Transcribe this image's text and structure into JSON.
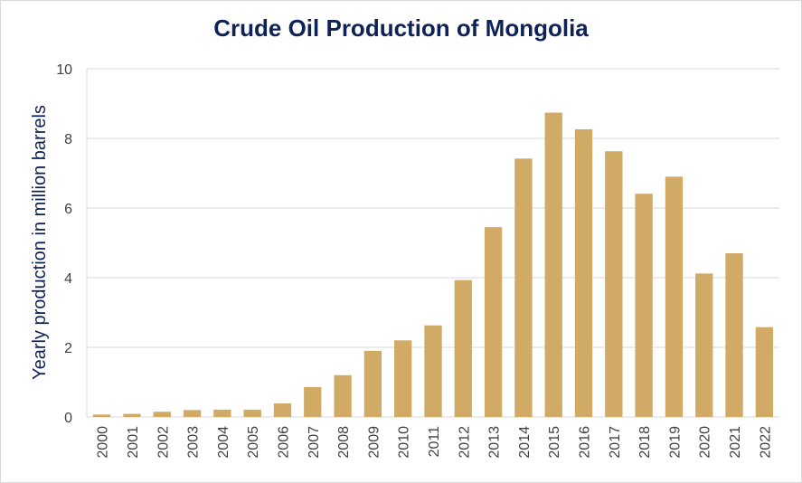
{
  "chart_data": {
    "type": "bar",
    "title": "Crude Oil Production of Mongolia",
    "xlabel": "",
    "ylabel": "Yearly production in million barrels",
    "categories": [
      "2000",
      "2001",
      "2002",
      "2003",
      "2004",
      "2005",
      "2006",
      "2007",
      "2008",
      "2009",
      "2010",
      "2011",
      "2012",
      "2013",
      "2014",
      "2015",
      "2016",
      "2017",
      "2018",
      "2019",
      "2020",
      "2021",
      "2022"
    ],
    "values": [
      0.07,
      0.09,
      0.15,
      0.2,
      0.21,
      0.21,
      0.39,
      0.86,
      1.2,
      1.9,
      2.2,
      2.63,
      3.93,
      5.45,
      7.42,
      8.74,
      8.26,
      7.63,
      6.41,
      6.9,
      4.12,
      4.7,
      2.58
    ],
    "ylim": [
      0,
      10
    ],
    "yticks": [
      0,
      2,
      4,
      6,
      8,
      10
    ],
    "grid": true,
    "legend": "none",
    "bar_color": "#d1aa66",
    "title_color": "#0f2257"
  }
}
